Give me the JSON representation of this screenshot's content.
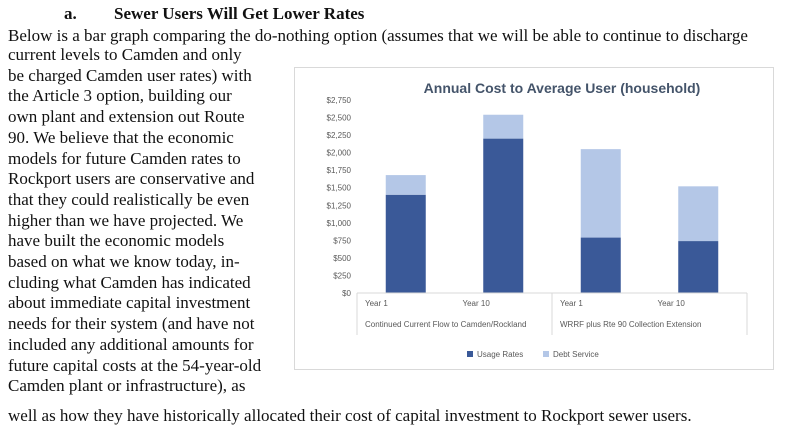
{
  "section": {
    "number": "a.",
    "title": "Sewer Users Will Get Lower Rates"
  },
  "body": {
    "line1": "Below is a bar graph comparing the do-nothing option (assumes that we will be able to continue to discharge",
    "wrap_lines": [
      "current levels to Camden and only",
      "be charged Camden user rates) with",
      "the Article 3 option, building our",
      "own plant and extension out Route",
      "90.  We believe that the economic",
      "models for future Camden rates to",
      "Rockport users are conservative and",
      "that they could realistically be even",
      "higher than we have projected.  We",
      "have built the economic models",
      "based on what we know today, in-",
      "cluding what Camden has indicated",
      "about immediate capital investment",
      "needs for their system (and have not",
      "included any additional amounts for",
      "future capital costs at the 54-year-old",
      "Camden plant or infrastructure), as"
    ],
    "last_line": "well as how they have historically allocated their cost of capital investment to Rockport sewer users."
  },
  "chart_data": {
    "type": "bar",
    "stacked": true,
    "title": "Annual Cost to Average User (household)",
    "categories": [
      "Year 1",
      "Year 10",
      "Year 1",
      "Year 10"
    ],
    "groups": [
      {
        "label": "Continued Current Flow to Camden/Rockland",
        "categories": [
          "Year 1",
          "Year 10"
        ]
      },
      {
        "label": "WRRF plus Rte 90 Collection Extension",
        "categories": [
          "Year 1",
          "Year 10"
        ]
      }
    ],
    "series": [
      {
        "name": "Usage Rates",
        "color": "#3a5998",
        "values": [
          1400,
          2200,
          790,
          740
        ]
      },
      {
        "name": "Debt Service",
        "color": "#b4c7e7",
        "values": [
          280,
          340,
          1260,
          780
        ]
      }
    ],
    "ylim": [
      0,
      2750
    ],
    "yticks": [
      "$0",
      "$250",
      "$500",
      "$750",
      "$1,000",
      "$1,250",
      "$1,500",
      "$1,750",
      "$2,000",
      "$2,250",
      "$2,500",
      "$2,750"
    ],
    "ytick_values": [
      0,
      250,
      500,
      750,
      1000,
      1250,
      1500,
      1750,
      2000,
      2250,
      2500,
      2750
    ],
    "legend_position": "bottom",
    "grid": false
  }
}
